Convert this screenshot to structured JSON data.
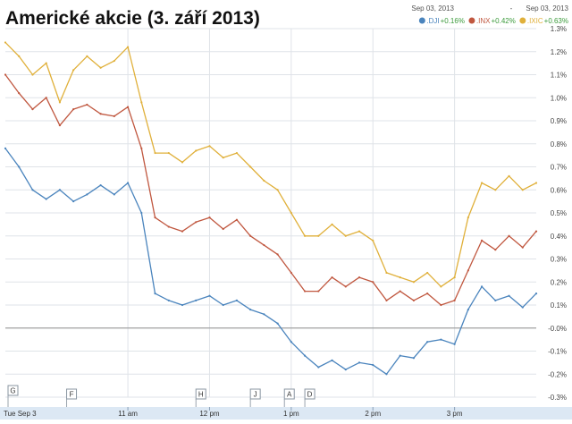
{
  "colors": {
    "dji": "#4a84bd",
    "inx": "#c0573f",
    "ixic": "#e0b03a",
    "positive": "#3a9a3a",
    "grid": "#dfe3e8",
    "zero": "#909090",
    "axis_band": "#dce8f4"
  },
  "chart_data": {
    "type": "line",
    "title": "Americké akcie (3. září 2013)",
    "date_range": {
      "start": "Sep 03, 2013",
      "separator": "-",
      "end": "Sep 03, 2013"
    },
    "x": [
      "09:30",
      "09:40",
      "09:50",
      "10:00",
      "10:10",
      "10:20",
      "10:30",
      "10:40",
      "10:50",
      "11:00",
      "11:10",
      "11:20",
      "11:30",
      "11:40",
      "11:50",
      "12:00",
      "12:10",
      "12:20",
      "12:30",
      "12:40",
      "12:50",
      "13:00",
      "13:10",
      "13:20",
      "13:30",
      "13:40",
      "13:50",
      "14:00",
      "14:10",
      "14:20",
      "14:30",
      "14:40",
      "14:50",
      "15:00",
      "15:10",
      "15:20",
      "15:30",
      "15:40",
      "15:50",
      "16:00"
    ],
    "xlim": [
      "09:30",
      "16:00"
    ],
    "x_ticks": [
      {
        "label": "Tue Sep 3",
        "x": "09:30"
      },
      {
        "label": "11 am",
        "x": "11:00"
      },
      {
        "label": "12 pm",
        "x": "12:00"
      },
      {
        "label": "1 pm",
        "x": "13:00"
      },
      {
        "label": "2 pm",
        "x": "14:00"
      },
      {
        "label": "3 pm",
        "x": "15:00"
      }
    ],
    "ylim": [
      -0.3,
      1.3
    ],
    "y_unit": "%",
    "y_ticks": [
      "-0.3%",
      "-0.2%",
      "-0.1%",
      "-0.0%",
      "0.1%",
      "0.2%",
      "0.3%",
      "0.4%",
      "0.5%",
      "0.6%",
      "0.7%",
      "0.8%",
      "0.9%",
      "1.0%",
      "1.1%",
      "1.2%",
      "1.3%"
    ],
    "y_tick_values": [
      -0.3,
      -0.2,
      -0.1,
      0.0,
      0.1,
      0.2,
      0.3,
      0.4,
      0.5,
      0.6,
      0.7,
      0.8,
      0.9,
      1.0,
      1.1,
      1.2,
      1.3
    ],
    "grid": true,
    "legend_position": "top-right",
    "series": [
      {
        "name": ".DJI",
        "change": "+0.16%",
        "color_key": "dji",
        "values": [
          0.78,
          0.7,
          0.6,
          0.56,
          0.6,
          0.55,
          0.58,
          0.62,
          0.58,
          0.63,
          0.5,
          0.15,
          0.12,
          0.1,
          0.12,
          0.14,
          0.1,
          0.12,
          0.08,
          0.06,
          0.02,
          -0.06,
          -0.12,
          -0.17,
          -0.14,
          -0.18,
          -0.15,
          -0.16,
          -0.2,
          -0.12,
          -0.13,
          -0.06,
          -0.05,
          -0.07,
          0.08,
          0.18,
          0.12,
          0.14,
          0.09,
          0.15
        ]
      },
      {
        "name": ".INX",
        "change": "+0.42%",
        "color_key": "inx",
        "values": [
          1.1,
          1.02,
          0.95,
          1.0,
          0.88,
          0.95,
          0.97,
          0.93,
          0.92,
          0.96,
          0.78,
          0.48,
          0.44,
          0.42,
          0.46,
          0.48,
          0.43,
          0.47,
          0.4,
          0.36,
          0.32,
          0.24,
          0.16,
          0.16,
          0.22,
          0.18,
          0.22,
          0.2,
          0.12,
          0.16,
          0.12,
          0.15,
          0.1,
          0.12,
          0.25,
          0.38,
          0.34,
          0.4,
          0.35,
          0.42
        ]
      },
      {
        "name": ".IXIC",
        "change": "+0.63%",
        "color_key": "ixic",
        "values": [
          1.24,
          1.18,
          1.1,
          1.15,
          0.98,
          1.12,
          1.18,
          1.13,
          1.16,
          1.22,
          0.98,
          0.76,
          0.76,
          0.72,
          0.77,
          0.79,
          0.74,
          0.76,
          0.7,
          0.64,
          0.6,
          0.5,
          0.4,
          0.4,
          0.45,
          0.4,
          0.42,
          0.38,
          0.24,
          0.22,
          0.2,
          0.24,
          0.18,
          0.22,
          0.48,
          0.63,
          0.6,
          0.66,
          0.6,
          0.63
        ]
      }
    ],
    "event_markers": [
      {
        "label": "G",
        "x": "09:30"
      },
      {
        "label": "F",
        "x": "10:15"
      },
      {
        "label": "H",
        "x": "11:50"
      },
      {
        "label": "J",
        "x": "12:30"
      },
      {
        "label": "A",
        "x": "12:55"
      },
      {
        "label": "D",
        "x": "13:10"
      }
    ]
  }
}
